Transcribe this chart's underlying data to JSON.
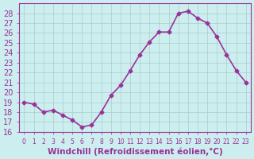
{
  "x": [
    0,
    1,
    2,
    3,
    4,
    5,
    6,
    7,
    8,
    9,
    10,
    11,
    12,
    13,
    14,
    15,
    16,
    17,
    18,
    19,
    20,
    21,
    22,
    23
  ],
  "y": [
    19.0,
    18.8,
    18.0,
    18.2,
    17.7,
    17.2,
    16.5,
    16.7,
    18.0,
    19.7,
    20.7,
    22.2,
    23.8,
    25.1,
    26.1,
    26.1,
    28.0,
    28.2,
    27.5,
    27.0,
    25.6,
    23.8,
    22.2,
    21.0
  ],
  "line_color": "#993399",
  "marker": "D",
  "marker_size": 2.5,
  "background_color": "#cceeee",
  "grid_color": "#aacccc",
  "xlabel": "Windchill (Refroidissement éolien,°C)",
  "xlim": [
    -0.5,
    23.5
  ],
  "ylim": [
    16,
    29
  ],
  "yticks": [
    16,
    17,
    18,
    19,
    20,
    21,
    22,
    23,
    24,
    25,
    26,
    27,
    28
  ],
  "xticks": [
    0,
    1,
    2,
    3,
    4,
    5,
    6,
    7,
    8,
    9,
    10,
    11,
    12,
    13,
    14,
    15,
    16,
    17,
    18,
    19,
    20,
    21,
    22,
    23
  ],
  "xlabel_color": "#993399",
  "tick_color": "#993399",
  "spine_color": "#993399",
  "xlabel_fontsize": 7.5,
  "ytick_fontsize": 7,
  "xtick_fontsize": 5.5,
  "linewidth": 1.2
}
